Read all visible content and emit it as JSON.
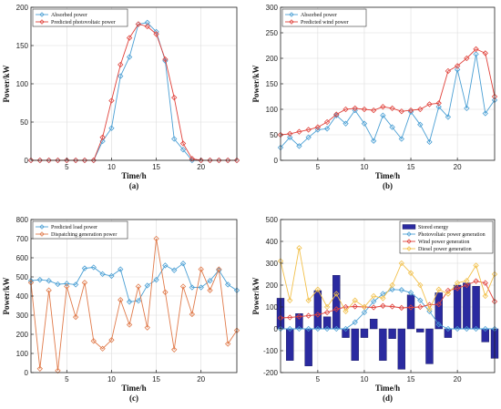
{
  "colors": {
    "blue": "#4a9fd4",
    "red": "#e0413a",
    "orange": "#e07a4a",
    "yellow": "#f2c04a",
    "bar": "#2a2aa0"
  },
  "chart_data": [
    {
      "type": "line",
      "caption": "(a)",
      "xlabel": "Time/h",
      "ylabel": "Power/kW",
      "xlim": [
        1,
        24
      ],
      "ylim": [
        0,
        200
      ],
      "xticks": [
        5,
        10,
        15,
        20
      ],
      "yticks": [
        0,
        50,
        100,
        150,
        200
      ],
      "x": [
        1,
        2,
        3,
        4,
        5,
        6,
        7,
        8,
        9,
        10,
        11,
        12,
        13,
        14,
        15,
        16,
        17,
        18,
        19,
        20,
        21,
        22,
        23,
        24
      ],
      "legend_position": "top-left",
      "series": [
        {
          "name": "Absorbed power",
          "color": "#4a9fd4",
          "values": [
            0,
            0,
            0,
            0,
            0,
            0,
            0,
            0,
            25,
            42,
            110,
            135,
            178,
            180,
            168,
            130,
            28,
            14,
            0,
            0,
            0,
            0,
            0,
            0
          ]
        },
        {
          "name": "Predicted photovoltaic power",
          "color": "#e0413a",
          "values": [
            0,
            0,
            0,
            0,
            0,
            0,
            0,
            0,
            30,
            78,
            125,
            160,
            178,
            175,
            165,
            132,
            82,
            22,
            2,
            0,
            0,
            0,
            0,
            0
          ]
        }
      ]
    },
    {
      "type": "line",
      "caption": "(b)",
      "xlabel": "Time/h",
      "ylabel": "Power/kW",
      "xlim": [
        1,
        24
      ],
      "ylim": [
        0,
        300
      ],
      "xticks": [
        5,
        10,
        15,
        20
      ],
      "yticks": [
        0,
        50,
        100,
        150,
        200,
        250,
        300
      ],
      "x": [
        1,
        2,
        3,
        4,
        5,
        6,
        7,
        8,
        9,
        10,
        11,
        12,
        13,
        14,
        15,
        16,
        17,
        18,
        19,
        20,
        21,
        22,
        23,
        24
      ],
      "legend_position": "top-left",
      "series": [
        {
          "name": "Absorbed power",
          "color": "#4a9fd4",
          "values": [
            25,
            45,
            28,
            45,
            60,
            62,
            88,
            72,
            98,
            72,
            38,
            88,
            65,
            42,
            95,
            70,
            36,
            105,
            85,
            178,
            102,
            208,
            92,
            118
          ]
        },
        {
          "name": "Predicted wind power",
          "color": "#e0413a",
          "values": [
            50,
            52,
            56,
            60,
            65,
            75,
            90,
            100,
            102,
            100,
            98,
            105,
            102,
            96,
            98,
            100,
            110,
            112,
            175,
            185,
            200,
            218,
            210,
            125
          ]
        }
      ]
    },
    {
      "type": "line",
      "caption": "(c)",
      "xlabel": "Time/h",
      "ylabel": "Power/kW",
      "xlim": [
        1,
        24
      ],
      "ylim": [
        0,
        800
      ],
      "xticks": [
        5,
        10,
        15,
        20
      ],
      "yticks": [
        0,
        100,
        200,
        300,
        400,
        500,
        600,
        700,
        800
      ],
      "x": [
        1,
        2,
        3,
        4,
        5,
        6,
        7,
        8,
        9,
        10,
        11,
        12,
        13,
        14,
        15,
        16,
        17,
        18,
        19,
        20,
        21,
        22,
        23,
        24
      ],
      "legend_position": "top-left",
      "series": [
        {
          "name": "Predicted load power",
          "color": "#4a9fd4",
          "values": [
            480,
            485,
            480,
            462,
            465,
            460,
            545,
            550,
            515,
            505,
            540,
            370,
            375,
            455,
            485,
            560,
            535,
            570,
            445,
            445,
            480,
            535,
            460,
            430
          ]
        },
        {
          "name": "Dispatching generation power",
          "color": "#e07a4a",
          "values": [
            470,
            20,
            430,
            10,
            450,
            290,
            470,
            165,
            125,
            170,
            380,
            250,
            450,
            235,
            700,
            420,
            120,
            450,
            305,
            540,
            430,
            540,
            150,
            220
          ]
        }
      ]
    },
    {
      "type": "bar+line",
      "caption": "(d)",
      "xlabel": "Time/h",
      "ylabel": "Power/kW",
      "xlim": [
        1,
        24
      ],
      "ylim": [
        -200,
        500
      ],
      "xticks": [
        5,
        10,
        15,
        20
      ],
      "yticks": [
        -200,
        -100,
        0,
        100,
        200,
        300,
        400,
        500
      ],
      "x": [
        1,
        2,
        3,
        4,
        5,
        6,
        7,
        8,
        9,
        10,
        11,
        12,
        13,
        14,
        15,
        16,
        17,
        18,
        19,
        20,
        21,
        22,
        23,
        24
      ],
      "legend_position": "top-right",
      "bars": {
        "name": "Stored energy",
        "color": "#2a2aa0",
        "values": [
          140,
          -145,
          70,
          -170,
          175,
          55,
          245,
          -40,
          -145,
          -40,
          45,
          -145,
          -45,
          -185,
          155,
          -15,
          -160,
          165,
          -40,
          200,
          210,
          195,
          -60,
          -135
        ]
      },
      "series": [
        {
          "name": "Photovoltaic power generation",
          "color": "#4a9fd4",
          "values": [
            0,
            0,
            0,
            0,
            0,
            0,
            0,
            0,
            30,
            75,
            125,
            160,
            180,
            178,
            165,
            130,
            80,
            20,
            0,
            0,
            0,
            0,
            0,
            0
          ]
        },
        {
          "name": "Wind power generation",
          "color": "#e0413a",
          "values": [
            50,
            52,
            56,
            60,
            65,
            75,
            90,
            100,
            102,
            100,
            98,
            105,
            102,
            96,
            98,
            100,
            110,
            112,
            175,
            185,
            200,
            218,
            210,
            125
          ]
        },
        {
          "name": "Diesel power generation",
          "color": "#f2c04a",
          "values": [
            310,
            130,
            370,
            130,
            180,
            100,
            160,
            80,
            130,
            100,
            150,
            140,
            200,
            300,
            255,
            200,
            90,
            180,
            160,
            210,
            220,
            290,
            150,
            250
          ]
        }
      ]
    }
  ]
}
